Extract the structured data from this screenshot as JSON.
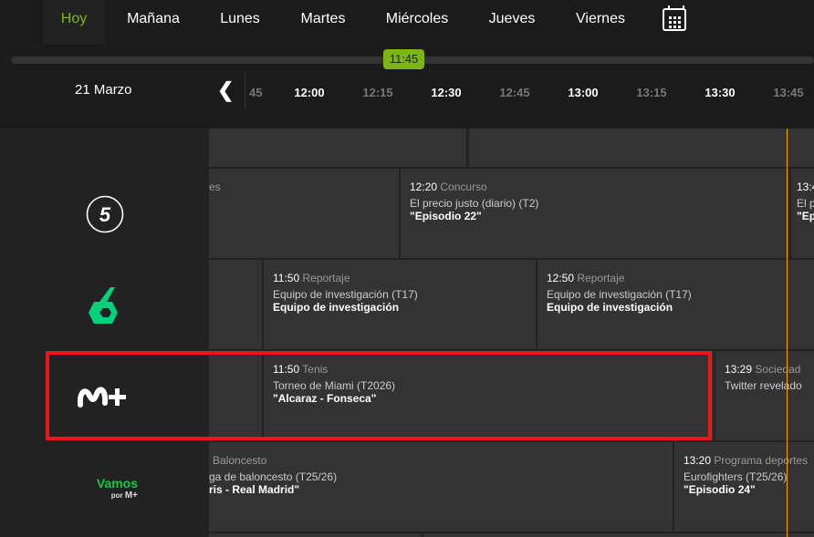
{
  "days": [
    {
      "label": "Hoy",
      "active": true
    },
    {
      "label": "Mañana"
    },
    {
      "label": "Lunes"
    },
    {
      "label": "Martes"
    },
    {
      "label": "Miércoles"
    },
    {
      "label": "Jueves"
    },
    {
      "label": "Viernes"
    }
  ],
  "calendar_icon": "calendar-icon",
  "current_time": "11:45",
  "date": "21 Marzo",
  "prev_icon": "chevron-left-icon",
  "ticks": [
    "45",
    "12:00",
    "12:15",
    "12:30",
    "12:45",
    "13:00",
    "13:15",
    "13:30",
    "13:45"
  ],
  "accent": "#7cb518",
  "channels": [
    {
      "name": "Telecinco",
      "logo": "telecinco-logo"
    },
    {
      "name": "laSexta",
      "logo": "lasexta-logo"
    },
    {
      "name": "Movistar Plus+",
      "logo": "movistar-plus-logo"
    },
    {
      "name": "Vamos por M+",
      "logo_text": "Vamos",
      "logo_sub": "por"
    }
  ],
  "rows": [
    [],
    [
      {
        "time": "",
        "cat": "es",
        "name": "",
        "ep": ""
      },
      {
        "time": "12:20",
        "cat": "Concurso",
        "name": "El precio justo (diario) (T2)",
        "ep": "\"Episodio 22\""
      },
      {
        "time": "13:4",
        "cat": "",
        "name": "El p",
        "ep": "\"Ep"
      }
    ],
    [
      {},
      {
        "time": "11:50",
        "cat": "Reportaje",
        "name": "Equipo de investigación (T17)",
        "ep": "Equipo de investigación"
      },
      {
        "time": "12:50",
        "cat": "Reportaje",
        "name": "Equipo de investigación (T17)",
        "ep": "Equipo de investigación"
      }
    ],
    [
      {},
      {
        "time": "11:50",
        "cat": "Tenis",
        "name": "Torneo de Miami (T2026)",
        "ep": "\"Alcaraz - Fonseca\""
      },
      {
        "time": "13:29",
        "cat": "Sociedad",
        "name": "Twitter revelado",
        "ep": ""
      }
    ],
    [
      {
        "time": "",
        "cat": "Baloncesto",
        "name": "ga de baloncesto (T25/26)",
        "ep": "ris - Real Madrid\""
      },
      {
        "time": "13:20",
        "cat": "Programa deportes",
        "name": "Eurofighters (T25/26)",
        "ep": "\"Episodio 24\""
      }
    ]
  ]
}
